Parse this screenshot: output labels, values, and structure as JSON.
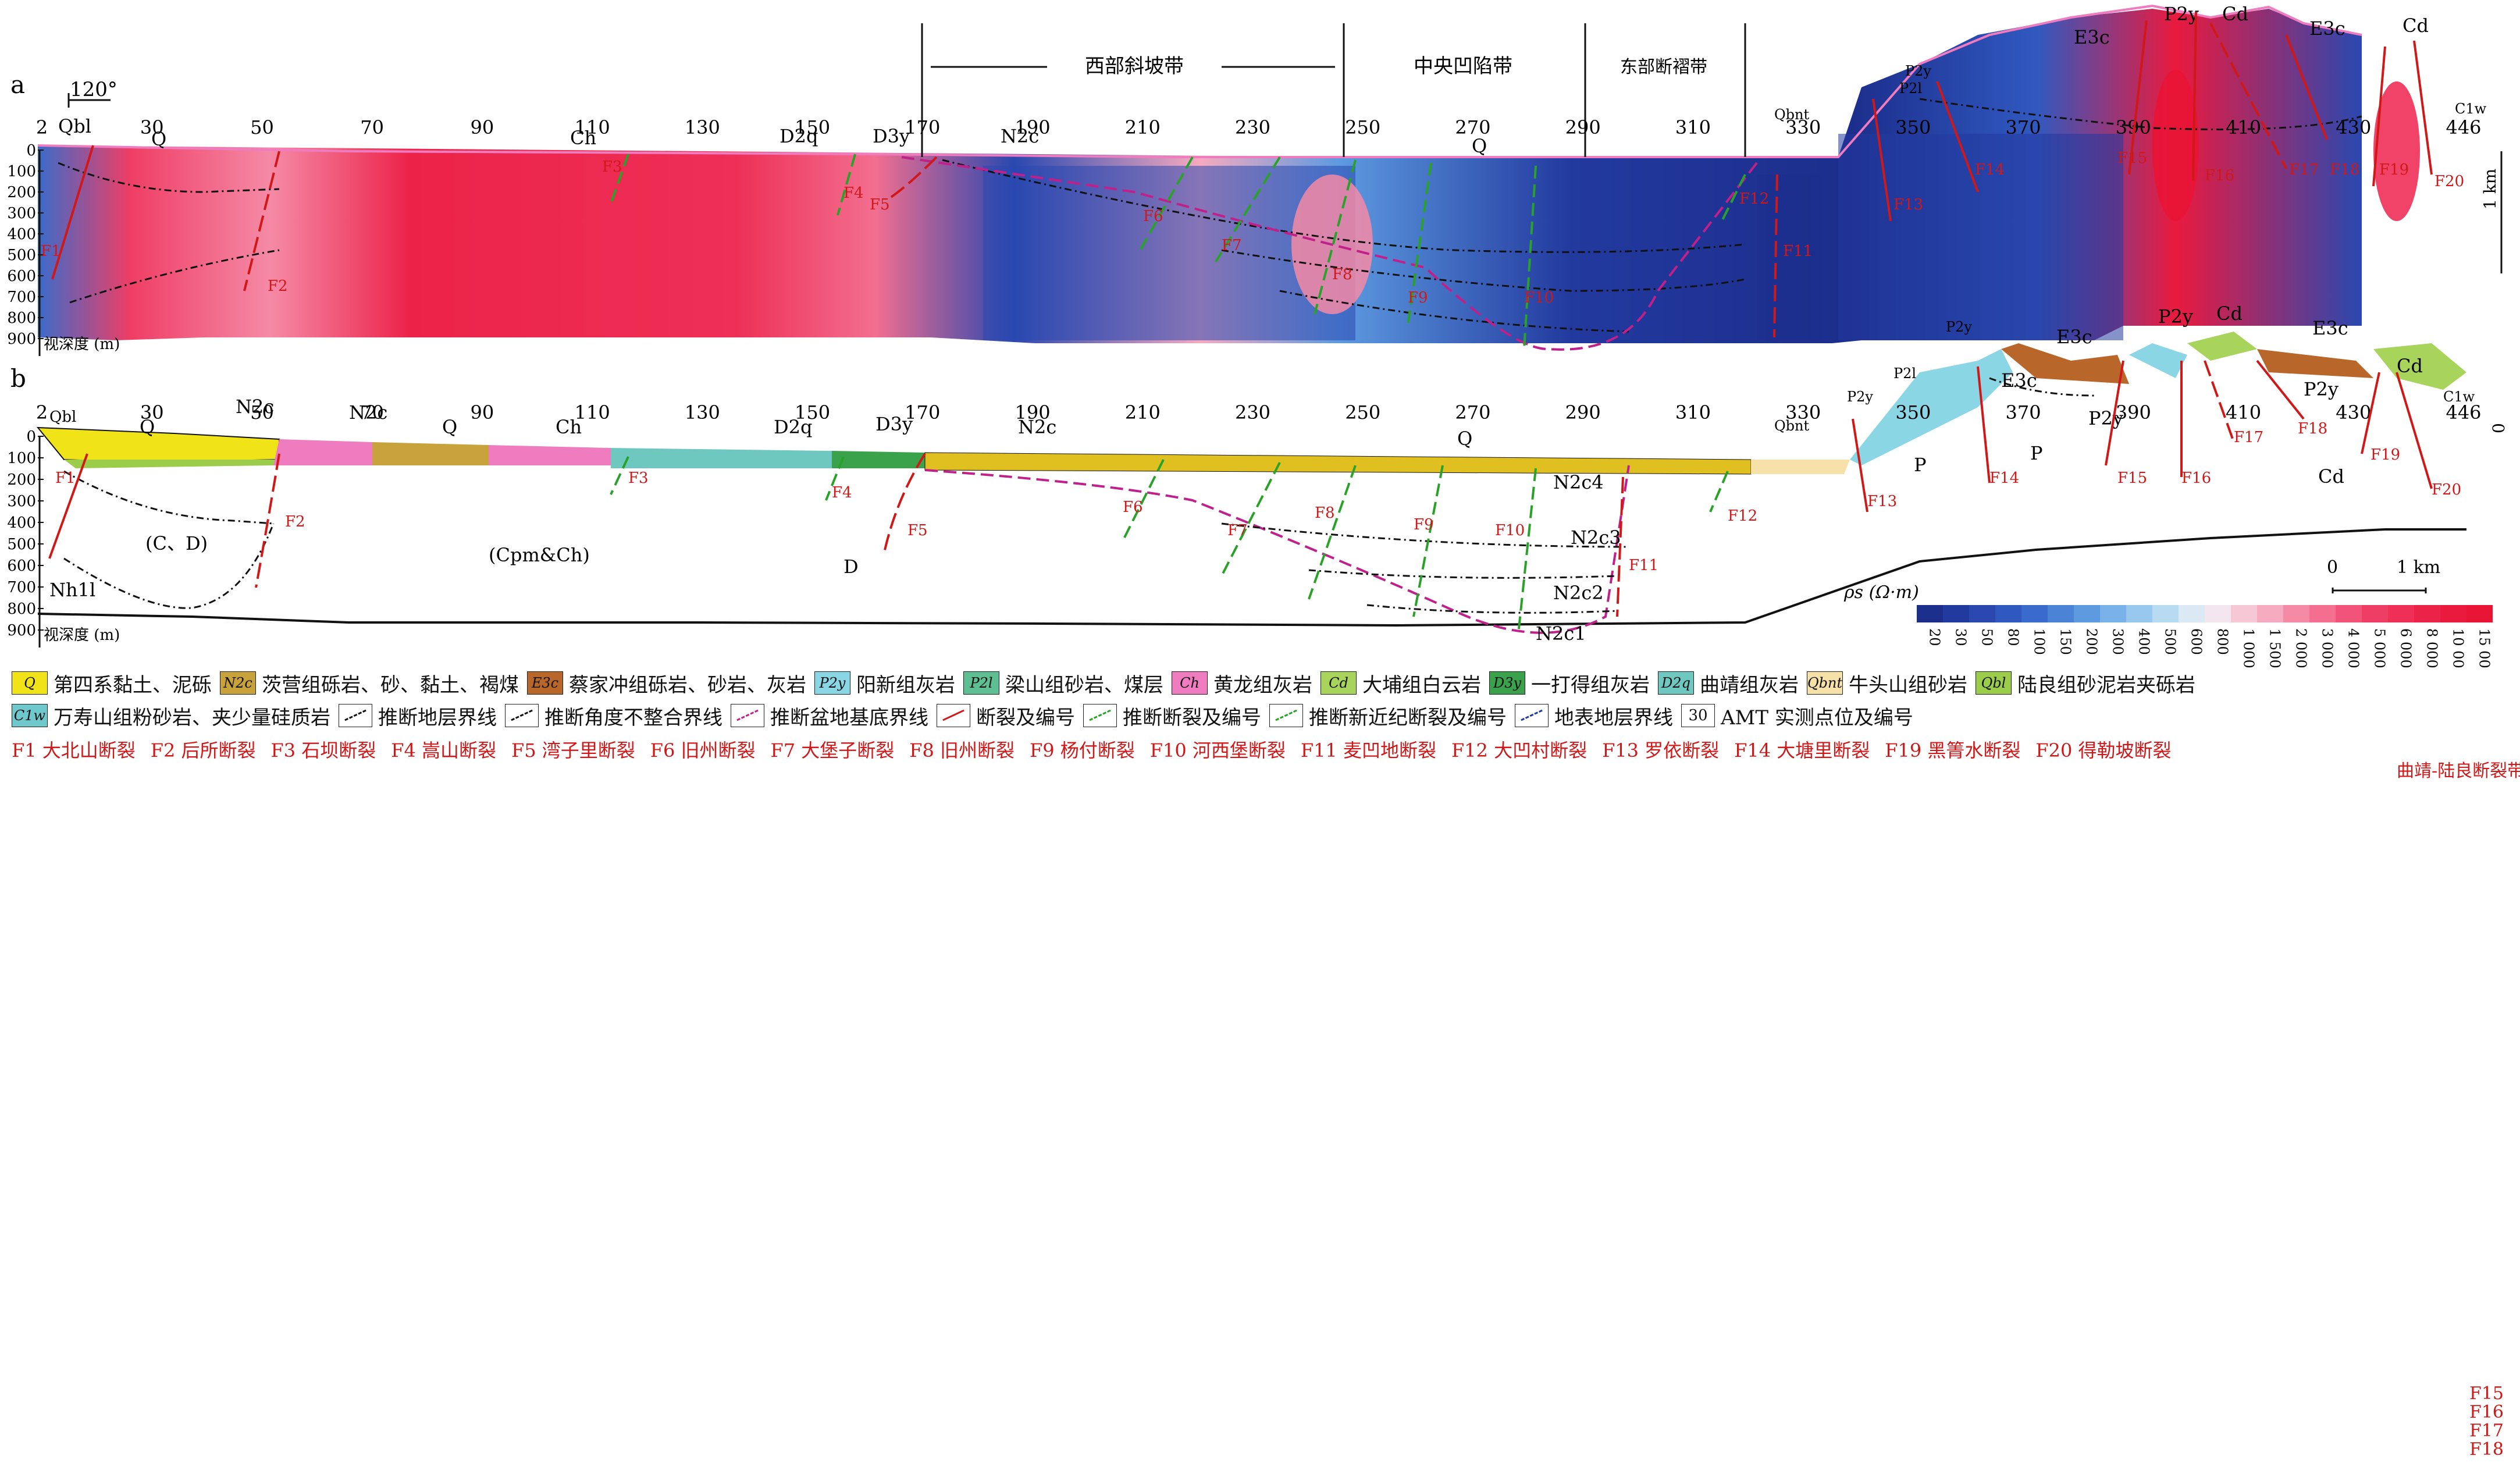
{
  "panels": {
    "a": {
      "label": "a",
      "orientation": "120°",
      "belts": [
        "西部斜坡带",
        "中央凹陷带",
        "东部断褶带"
      ],
      "ticks": [
        "2",
        "30",
        "50",
        "70",
        "90",
        "110",
        "130",
        "150",
        "170",
        "190",
        "210",
        "230",
        "250",
        "270",
        "290",
        "310",
        "330",
        "350",
        "370",
        "390",
        "410",
        "430",
        "446"
      ],
      "depth_labels": [
        "0",
        "100",
        "200",
        "300",
        "400",
        "500",
        "600",
        "700",
        "800",
        "900"
      ],
      "depth_axis": "视深度 (m)",
      "strata": [
        "Qbl",
        "Q",
        "Ch",
        "D2q",
        "D3y",
        "N2c",
        "Q",
        "Qbnt",
        "P2l",
        "P2y",
        "E3c",
        "P2y",
        "Cd",
        "E3c",
        "Cd",
        "C1w"
      ],
      "faults": [
        "F1",
        "F2",
        "F3",
        "F4",
        "F5",
        "F6",
        "F7",
        "F8",
        "F9",
        "F10",
        "F11",
        "F12",
        "F13",
        "F14",
        "F15",
        "F16",
        "F17",
        "F18",
        "F19",
        "F20"
      ],
      "scale_label": "1 km"
    },
    "b": {
      "label": "b",
      "ticks": [
        "2",
        "30",
        "50",
        "70",
        "90",
        "110",
        "130",
        "150",
        "170",
        "190",
        "210",
        "230",
        "250",
        "270",
        "290",
        "310",
        "330",
        "350",
        "370",
        "390",
        "410",
        "430",
        "446"
      ],
      "depth_labels": [
        "0",
        "100",
        "200",
        "300",
        "400",
        "500",
        "600",
        "700",
        "800",
        "900"
      ],
      "depth_axis": "视深度 (m)",
      "units": [
        "Qbl",
        "Q",
        "N2c",
        "N2c",
        "Q",
        "Ch",
        "D2q",
        "D3y",
        "N2c",
        "Q",
        "Qbnt",
        "P2y",
        "P2l",
        "P2y",
        "E3c",
        "P2y",
        "Cd",
        "E3c",
        "Cd",
        "C1w",
        "E3c",
        "P2y",
        "P",
        "P",
        "Cd",
        "P2y",
        "(C、D)",
        "(Cpm&Ch)",
        "D",
        "Nh1l",
        "N2c4",
        "N2c3",
        "N2c2",
        "N2c1"
      ],
      "faults": [
        "F1",
        "F2",
        "F3",
        "F4",
        "F5",
        "F6",
        "F7",
        "F8",
        "F9",
        "F10",
        "F11",
        "F12",
        "F13",
        "F14",
        "F15",
        "F16",
        "F17",
        "F18",
        "F19",
        "F20"
      ],
      "scale_left": "0",
      "scale_right": "1 km",
      "scale_zero": "0"
    }
  },
  "colorbar": {
    "label": "ρs (Ω·m)",
    "values": [
      "20",
      "30",
      "50",
      "80",
      "100",
      "150",
      "200",
      "300",
      "400",
      "500",
      "600",
      "800",
      "1 000",
      "1 500",
      "2 000",
      "3 000",
      "4 000",
      "5 000",
      "6 000",
      "8 000",
      "10 000",
      "15 000"
    ],
    "colors": [
      "#1c2e8c",
      "#22399e",
      "#2a48b0",
      "#3059c0",
      "#3a6bcc",
      "#4a82d6",
      "#5d9ae0",
      "#78b2e8",
      "#98c8ee",
      "#b9dbf2",
      "#dbe9f4",
      "#f3e6ee",
      "#f6c8d6",
      "#f6aabf",
      "#f58aa6",
      "#f36e8f",
      "#f15478",
      "#ef3e65",
      "#ee2f56",
      "#ec2349",
      "#ea1a3e",
      "#e81435"
    ]
  },
  "legend": {
    "row1": [
      {
        "code": "Q",
        "color": "#f0e419",
        "text": "第四系黏土、泥砾"
      },
      {
        "code": "N2c",
        "color": "#c8a23a",
        "text": "茨营组砾岩、砂、黏土、褐煤"
      },
      {
        "code": "E3c",
        "color": "#b8662a",
        "text": "蔡家冲组砾岩、砂岩、灰岩"
      },
      {
        "code": "P2y",
        "color": "#8ad6e4",
        "text": "阳新组灰岩"
      },
      {
        "code": "P2l",
        "color": "#5dbf92",
        "text": "梁山组砂岩、煤层"
      },
      {
        "code": "Ch",
        "color": "#f07cc0",
        "text": "黄龙组灰岩"
      },
      {
        "code": "Cd",
        "color": "#a8d45c",
        "text": "大埔组白云岩"
      },
      {
        "code": "D3y",
        "color": "#3aa24a",
        "text": "一打得组灰岩"
      },
      {
        "code": "D2q",
        "color": "#6fc8c0",
        "text": "曲靖组灰岩"
      },
      {
        "code": "Qbnt",
        "color": "#f6e2a8",
        "text": "牛头山组砂岩"
      },
      {
        "code": "Qbl",
        "color": "#9ccd4a",
        "text": "陆良组砂泥岩夹砾岩"
      }
    ],
    "row2": [
      {
        "code": "C1w",
        "color": "#6ec8cc",
        "text": "万寿山组粉砂岩、夹少量硅质岩"
      },
      {
        "icon": "boundary",
        "text": "推断地层界线"
      },
      {
        "icon": "unconformity",
        "text": "推断角度不整合界线"
      },
      {
        "icon": "basin-line",
        "text": "推断盆地基底界线"
      },
      {
        "icon": "fault",
        "text": "断裂及编号"
      },
      {
        "icon": "inferred-fault",
        "text": "推断断裂及编号"
      },
      {
        "icon": "neogene-fault",
        "text": "推断新近纪断裂及编号"
      },
      {
        "icon": "surface-boundary",
        "text": "地表地层界线"
      },
      {
        "icon": "amt-point",
        "code": "30",
        "text": "AMT 实测点位及编号"
      }
    ],
    "faults_row": [
      "F1 大北山断裂",
      "F2 后所断裂",
      "F3 石坝断裂",
      "F4 嵩山断裂",
      "F5 湾子里断裂",
      "F6 旧州断裂",
      "F7 大堡子断裂",
      "F8 旧州断裂",
      "F9 杨付断裂",
      "F10 河西堡断裂",
      "F11 麦凹地断裂",
      "F12 大凹村断裂",
      "F13 罗依断裂",
      "F14 大塘里断裂",
      "F19 黑箐水断裂",
      "F20 得勒坡断裂"
    ],
    "belt_faults": [
      "F15",
      "F16",
      "F17",
      "F18"
    ],
    "belt_label": "曲靖-陆良断裂带"
  }
}
